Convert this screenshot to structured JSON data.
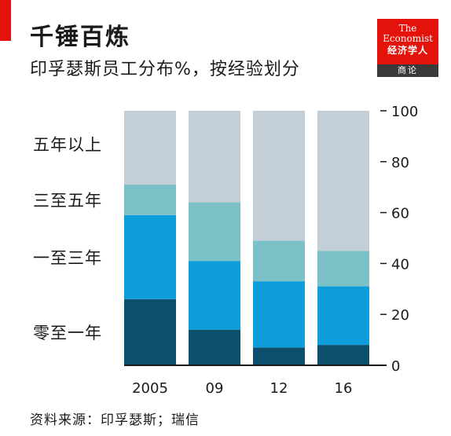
{
  "header": {
    "title": "千锤百炼",
    "subtitle": "印孚瑟斯员工分布%，按经验划分"
  },
  "logo": {
    "line1": "The",
    "line2": "Economist",
    "line3": "经济学人",
    "line4": "商论"
  },
  "source": "资料来源：印孚瑟斯；瑞信",
  "colors": {
    "accent": "#e3120b",
    "rest": "#c3ced6",
    "three_to_five": "#7dc1c8",
    "one_to_three": "#0e9ddb",
    "zero_to_one": "#0b4f6c",
    "axis": "#1a1a1a"
  },
  "chart_data": {
    "type": "bar",
    "stacked": true,
    "categories": [
      "2005",
      "09",
      "12",
      "16"
    ],
    "series": [
      {
        "name": "零至一年",
        "color": "#0b4f6c",
        "values": [
          26,
          14,
          7,
          8
        ]
      },
      {
        "name": "一至三年",
        "color": "#0e9ddb",
        "values": [
          33,
          27,
          26,
          23
        ]
      },
      {
        "name": "三至五年",
        "color": "#7dc1c8",
        "values": [
          12,
          23,
          16,
          14
        ]
      },
      {
        "name": "五年以上",
        "color": "#c3ced6",
        "values": [
          29,
          36,
          51,
          55
        ]
      }
    ],
    "ylim": [
      0,
      100
    ],
    "yticks": [
      0,
      20,
      40,
      60,
      80,
      100
    ],
    "y_axis_side": "right",
    "legend": "left, labels inline with bands",
    "grid": false
  }
}
